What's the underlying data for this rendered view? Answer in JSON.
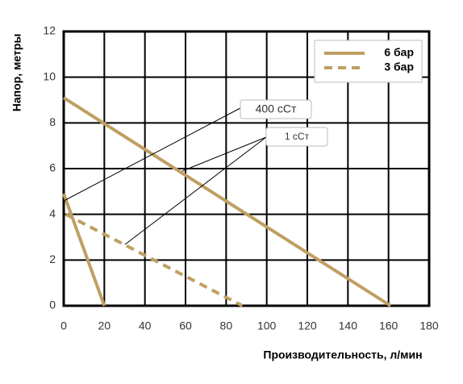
{
  "chart_data": {
    "type": "line",
    "x_label": "Производительность, л/мин",
    "y_label": "Напор, метры",
    "xlim": [
      0,
      180
    ],
    "ylim": [
      0,
      12
    ],
    "xticks": [
      0,
      20,
      40,
      60,
      80,
      100,
      120,
      140,
      160,
      180
    ],
    "yticks": [
      0,
      2,
      4,
      6,
      8,
      10,
      12
    ],
    "grid": true,
    "legend_position": "upper right",
    "annotations": [
      "400 сСт",
      "1 сСт"
    ],
    "series": [
      {
        "name": "6 бар",
        "color": "#bf9f62",
        "dash": false,
        "x": [
          0,
          161
        ],
        "values": [
          9.1,
          0
        ]
      },
      {
        "color": "#bf9f62",
        "dash": false,
        "x": [
          0,
          20
        ],
        "values": [
          4.9,
          0
        ]
      },
      {
        "name": "3 бар",
        "color": "#bf9f62",
        "dash": true,
        "x": [
          1,
          88
        ],
        "values": [
          4.0,
          0
        ]
      }
    ]
  }
}
